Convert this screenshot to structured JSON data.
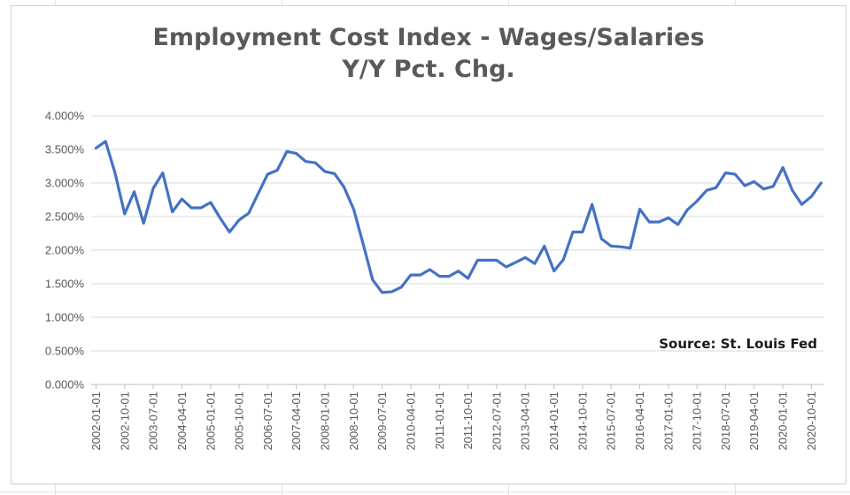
{
  "chart_data": {
    "type": "line",
    "title": [
      "Employment Cost Index - Wages/Salaries",
      "Y/Y Pct. Chg."
    ],
    "xlabel": "",
    "ylabel": "",
    "ylim": [
      0,
      4
    ],
    "y_ticks": [
      0,
      0.5,
      1,
      1.5,
      2,
      2.5,
      3,
      3.5,
      4
    ],
    "y_tick_labels": [
      "0.000%",
      "0.500%",
      "1.000%",
      "1.500%",
      "2.000%",
      "2.500%",
      "3.000%",
      "3.500%",
      "4.000%"
    ],
    "x_tick_labels": [
      "2002-01-01",
      "2002-10-01",
      "2003-07-01",
      "2004-04-01",
      "2005-01-01",
      "2005-10-01",
      "2006-07-01",
      "2007-04-01",
      "2008-01-01",
      "2008-10-01",
      "2009-07-01",
      "2010-04-01",
      "2011-01-01",
      "2011-10-01",
      "2012-07-01",
      "2013-04-01",
      "2014-01-01",
      "2014-10-01",
      "2015-07-01",
      "2016-04-01",
      "2017-01-01",
      "2017-10-01",
      "2018-07-01",
      "2019-04-01",
      "2020-01-01",
      "2020-10-01"
    ],
    "grid": true,
    "legend": "none",
    "annotation": "Source: St. Louis Fed",
    "series": [
      {
        "color": "#4472c4",
        "x": [
          "2002-01-01",
          "2002-04-01",
          "2002-07-01",
          "2002-10-01",
          "2003-01-01",
          "2003-04-01",
          "2003-07-01",
          "2003-10-01",
          "2004-01-01",
          "2004-04-01",
          "2004-07-01",
          "2004-10-01",
          "2005-01-01",
          "2005-04-01",
          "2005-07-01",
          "2005-10-01",
          "2006-01-01",
          "2006-04-01",
          "2006-07-01",
          "2006-10-01",
          "2007-01-01",
          "2007-04-01",
          "2007-07-01",
          "2007-10-01",
          "2008-01-01",
          "2008-04-01",
          "2008-07-01",
          "2008-10-01",
          "2009-01-01",
          "2009-04-01",
          "2009-07-01",
          "2009-10-01",
          "2010-01-01",
          "2010-04-01",
          "2010-07-01",
          "2010-10-01",
          "2011-01-01",
          "2011-04-01",
          "2011-07-01",
          "2011-10-01",
          "2012-01-01",
          "2012-04-01",
          "2012-07-01",
          "2012-10-01",
          "2013-01-01",
          "2013-04-01",
          "2013-07-01",
          "2013-10-01",
          "2014-01-01",
          "2014-04-01",
          "2014-07-01",
          "2014-10-01",
          "2015-01-01",
          "2015-04-01",
          "2015-07-01",
          "2015-10-01",
          "2016-01-01",
          "2016-04-01",
          "2016-07-01",
          "2016-10-01",
          "2017-01-01",
          "2017-04-01",
          "2017-07-01",
          "2017-10-01",
          "2018-01-01",
          "2018-04-01",
          "2018-07-01",
          "2018-10-01",
          "2019-01-01",
          "2019-04-01",
          "2019-07-01",
          "2019-10-01",
          "2020-01-01",
          "2020-04-01",
          "2020-07-01",
          "2020-10-01",
          "2021-01-01"
        ],
        "values": [
          3.52,
          3.62,
          3.15,
          2.54,
          2.87,
          2.4,
          2.92,
          3.15,
          2.57,
          2.76,
          2.63,
          2.63,
          2.71,
          2.48,
          2.27,
          2.45,
          2.55,
          2.84,
          3.13,
          3.19,
          3.47,
          3.44,
          3.32,
          3.3,
          3.17,
          3.14,
          2.94,
          2.61,
          2.09,
          1.56,
          1.37,
          1.38,
          1.45,
          1.63,
          1.63,
          1.71,
          1.61,
          1.61,
          1.69,
          1.58,
          1.85,
          1.85,
          1.85,
          1.75,
          1.82,
          1.89,
          1.8,
          2.06,
          1.69,
          1.86,
          2.27,
          2.27,
          2.68,
          2.17,
          2.06,
          2.05,
          2.03,
          2.61,
          2.42,
          2.42,
          2.48,
          2.38,
          2.6,
          2.73,
          2.89,
          2.93,
          3.15,
          3.13,
          2.96,
          3.02,
          2.91,
          2.95,
          3.23,
          2.89,
          2.68,
          2.8,
          3.0
        ]
      }
    ]
  }
}
